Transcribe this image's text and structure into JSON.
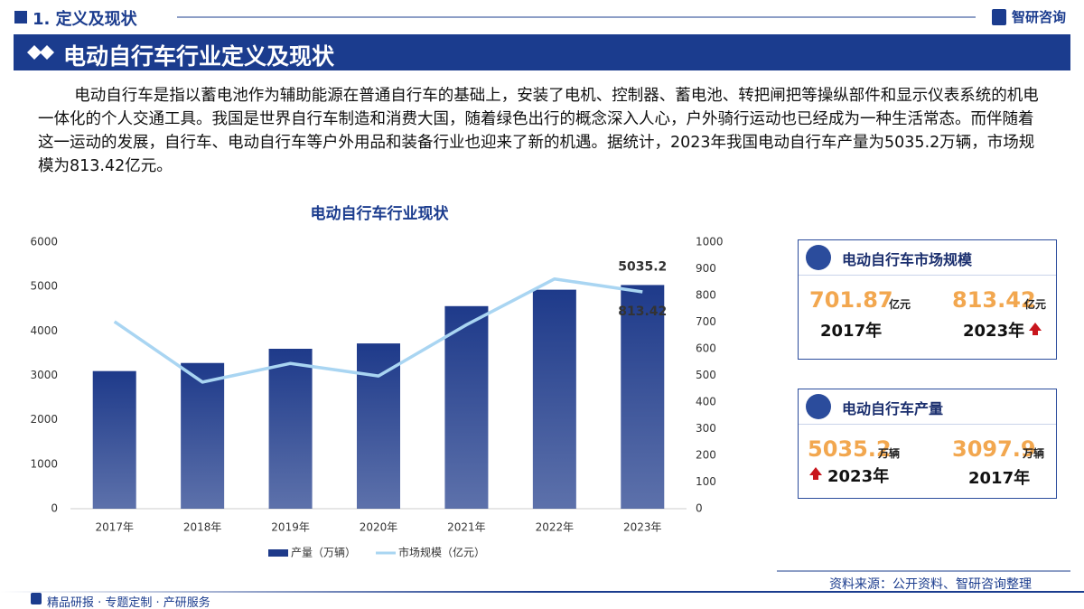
{
  "header": {
    "section": "1. 定义及现状",
    "logo": "智研咨询",
    "banner": "电动自行车行业定义及现状"
  },
  "paragraph": "电动自行车是指以蓄电池作为辅助能源在普通自行车的基础上，安装了电机、控制器、蓄电池、转把闸把等操纵部件和显示仪表系统的机电一体化的个人交通工具。我国是世界自行车制造和消费大国，随着绿色出行的概念深入人心，户外骑行运动也已经成为一种生活常态。而伴随着这一运动的发展，自行车、电动自行车等户外用品和装备行业也迎来了新的机遇。据统计，2023年我国电动自行车产量为5035.2万辆，市场规模为813.42亿元。",
  "chart_data": {
    "type": "bar",
    "title": "电动自行车行业现状",
    "categories": [
      "2017年",
      "2018年",
      "2019年",
      "2020年",
      "2021年",
      "2022年",
      "2023年"
    ],
    "series": [
      {
        "name": "产量（万辆）",
        "color": "#1e3a8a",
        "values": [
          3097.9,
          3280,
          3600,
          3720,
          4560,
          4930,
          5035.2
        ]
      },
      {
        "name": "市场规模（亿元）",
        "type": "line",
        "axis": "y2",
        "color": "#a9d5f2",
        "values": [
          701.87,
          475,
          545,
          498,
          690,
          862,
          813.42
        ]
      }
    ],
    "ylim": [
      0,
      6000
    ],
    "yticks": [
      0,
      1000,
      2000,
      3000,
      4000,
      5000,
      6000
    ],
    "y2lim": [
      0,
      1000
    ],
    "y2ticks": [
      0,
      100,
      200,
      300,
      400,
      500,
      600,
      700,
      800,
      900,
      1000
    ],
    "legend": "bottom"
  },
  "cards": [
    {
      "title": "电动自行车市场规模",
      "left": {
        "value": 701.87,
        "unit": "亿元",
        "year": "2017年"
      },
      "right": {
        "value": 813.42,
        "unit": "亿元",
        "year": "2023年"
      }
    },
    {
      "title": "电动自行车产量",
      "left": {
        "value": 5035.2,
        "unit": "万辆",
        "year": "2023年"
      },
      "right": {
        "value": 3097.9,
        "unit": "万辆",
        "year": "2017年"
      }
    }
  ],
  "footer": {
    "source": "资料来源：公开资料、智研咨询整理",
    "services": "精品研报 · 专题定制 · 产研服务"
  }
}
